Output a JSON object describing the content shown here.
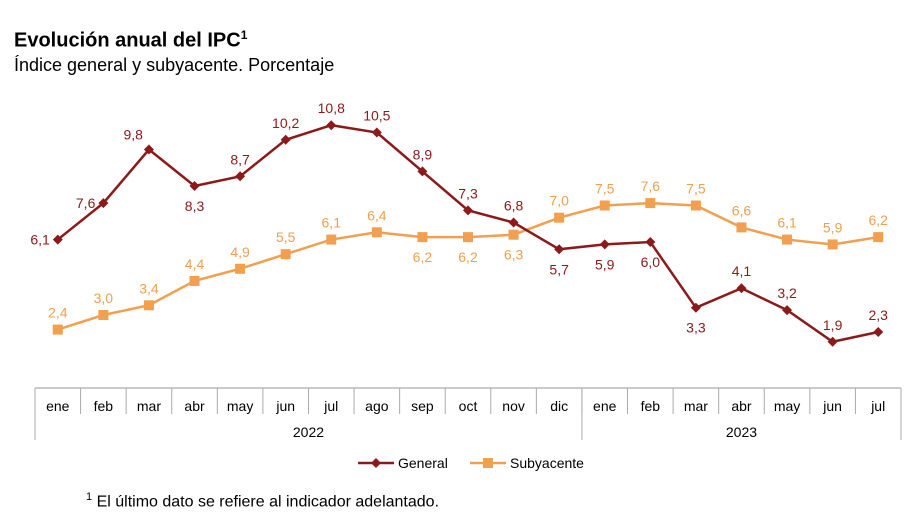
{
  "title": "Evolución anual del IPC",
  "title_sup": "1",
  "subtitle": "Índice general y subyacente. Porcentaje",
  "footnote_sup": "1",
  "footnote": "El último dato se refiere al indicador adelantado.",
  "chart_data": {
    "type": "line",
    "categories": [
      "ene",
      "feb",
      "mar",
      "abr",
      "may",
      "jun",
      "jul",
      "ago",
      "sep",
      "oct",
      "nov",
      "dic",
      "ene",
      "feb",
      "mar",
      "abr",
      "may",
      "jun",
      "jul"
    ],
    "year_groups": [
      {
        "label": "2022",
        "count": 12
      },
      {
        "label": "2023",
        "count": 7
      }
    ],
    "series": [
      {
        "name": "General",
        "color": "#8B1A1A",
        "marker": "diamond",
        "values": [
          6.1,
          7.6,
          9.8,
          8.3,
          8.7,
          10.2,
          10.8,
          10.5,
          8.9,
          7.3,
          6.8,
          5.7,
          5.9,
          6.0,
          3.3,
          4.1,
          3.2,
          1.9,
          2.3
        ],
        "labels": [
          "6,1",
          "7,6",
          "9,8",
          "8,3",
          "8,7",
          "10,2",
          "10,8",
          "10,5",
          "8,9",
          "7,3",
          "6,8",
          "5,7",
          "5,9",
          "6,0",
          "3,3",
          "4,1",
          "3,2",
          "1,9",
          "2,3"
        ]
      },
      {
        "name": "Subyacente",
        "color": "#F0A050",
        "marker": "square",
        "values": [
          2.4,
          3.0,
          3.4,
          4.4,
          4.9,
          5.5,
          6.1,
          6.4,
          6.2,
          6.2,
          6.3,
          7.0,
          7.5,
          7.6,
          7.5,
          6.6,
          6.1,
          5.9,
          6.2
        ],
        "labels": [
          "2,4",
          "3,0",
          "3,4",
          "4,4",
          "4,9",
          "5,5",
          "6,1",
          "6,4",
          "6,2",
          "6,2",
          "6,3",
          "7,0",
          "7,5",
          "7,6",
          "7,5",
          "6,6",
          "6,1",
          "5,9",
          "6,2"
        ]
      }
    ],
    "ylim": [
      0,
      12
    ],
    "grid": false,
    "legend": "bottom"
  }
}
